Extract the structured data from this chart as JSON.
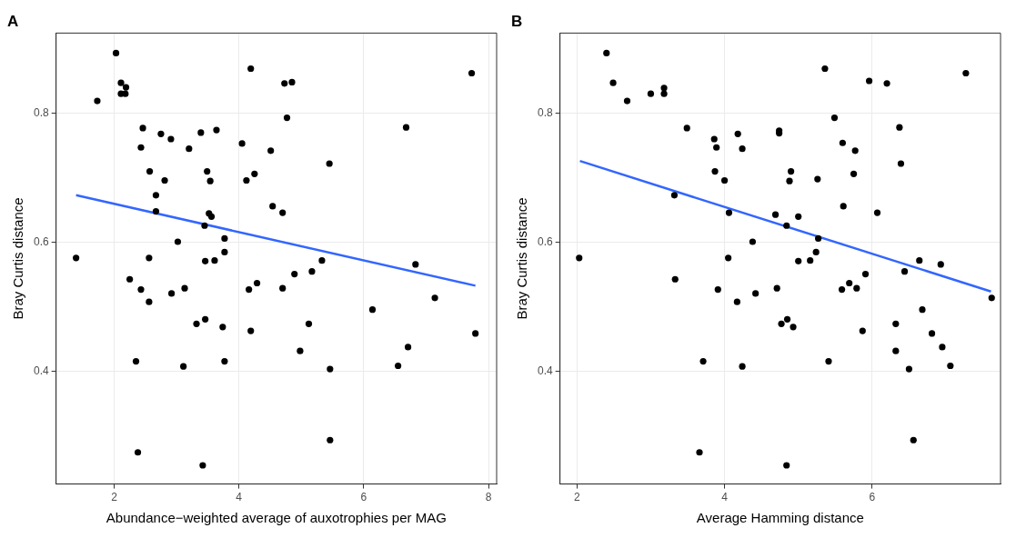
{
  "chart_data": [
    {
      "type": "scatter",
      "title": "A",
      "xlabel": "Abundance−weighted average of auxotrophies per MAG",
      "ylabel": "Bray Curtis distance",
      "xlim": [
        1.07,
        8.13
      ],
      "xticks": [
        2,
        4,
        6,
        8
      ],
      "ylim": [
        0.226,
        0.924
      ],
      "yticks": [
        0.4,
        0.6,
        0.8
      ],
      "grid": true,
      "legend": false,
      "marker": "circle",
      "series": [
        {
          "color": "#000000",
          "x": [
            2.03,
            1.73,
            2.11,
            2.19,
            2.11,
            2.18,
            4.19,
            2.46,
            2.75,
            2.91,
            2.43,
            3.2,
            3.39,
            3.64,
            4.05,
            4.51,
            2.57,
            2.81,
            3.49,
            3.54,
            4.12,
            4.25,
            2.67,
            4.54,
            2.67,
            3.52,
            3.56,
            3.45,
            3.02,
            3.77,
            3.77,
            1.39,
            2.56,
            3.46,
            3.61,
            2.25,
            4.29,
            4.73,
            4.85,
            4.77,
            5.45,
            7.73,
            6.68,
            4.7,
            5.33,
            4.89,
            5.17,
            6.83,
            2.43,
            2.56,
            2.92,
            3.13,
            4.16,
            4.7,
            6.14,
            7.14,
            7.79,
            3.32,
            3.46,
            3.74,
            4.19,
            5.12,
            4.98,
            2.35,
            3.11,
            3.77,
            5.46,
            6.55,
            6.71,
            2.38,
            3.42,
            5.46
          ],
          "values": [
            0.893,
            0.819,
            0.847,
            0.84,
            0.83,
            0.83,
            0.869,
            0.777,
            0.768,
            0.76,
            0.747,
            0.745,
            0.77,
            0.774,
            0.753,
            0.742,
            0.71,
            0.696,
            0.71,
            0.695,
            0.696,
            0.706,
            0.673,
            0.656,
            0.648,
            0.645,
            0.64,
            0.626,
            0.601,
            0.606,
            0.585,
            0.576,
            0.576,
            0.571,
            0.572,
            0.543,
            0.537,
            0.846,
            0.848,
            0.793,
            0.722,
            0.862,
            0.778,
            0.646,
            0.572,
            0.551,
            0.555,
            0.566,
            0.527,
            0.508,
            0.521,
            0.529,
            0.527,
            0.529,
            0.496,
            0.514,
            0.459,
            0.474,
            0.481,
            0.469,
            0.463,
            0.474,
            0.432,
            0.416,
            0.408,
            0.416,
            0.404,
            0.409,
            0.438,
            0.275,
            0.255,
            0.294
          ]
        },
        {
          "type": "line",
          "color": "#3366ff",
          "marker": "none",
          "x": [
            1.39,
            7.79
          ],
          "values": [
            0.673,
            0.533
          ]
        }
      ]
    },
    {
      "type": "scatter",
      "title": "B",
      "xlabel": "Average Hamming distance",
      "ylabel": "Bray Curtis distance",
      "xlim": [
        1.77,
        7.74
      ],
      "xticks": [
        2,
        4,
        6
      ],
      "ylim": [
        0.226,
        0.924
      ],
      "yticks": [
        0.4,
        0.6,
        0.8
      ],
      "grid": true,
      "legend": false,
      "marker": "circle",
      "series": [
        {
          "color": "#000000",
          "x": [
            2.4,
            2.49,
            2.68,
            3.0,
            3.18,
            3.18,
            3.49,
            3.86,
            3.89,
            4.18,
            4.24,
            4.74,
            4.74,
            3.87,
            4.0,
            3.32,
            4.06,
            4.69,
            4.38,
            2.03,
            4.05,
            3.33,
            5.36,
            5.96,
            6.2,
            7.27,
            5.49,
            6.37,
            5.6,
            5.77,
            6.39,
            4.9,
            4.88,
            5.26,
            5.75,
            5.61,
            6.07,
            4.84,
            5.0,
            5.27,
            5.24,
            5.0,
            5.16,
            6.64,
            6.93,
            5.91,
            6.44,
            5.69,
            3.91,
            4.17,
            4.42,
            4.71,
            5.59,
            5.79,
            7.62,
            6.68,
            6.32,
            6.81,
            6.95,
            6.32,
            4.77,
            4.85,
            4.93,
            5.87,
            3.71,
            4.24,
            5.41,
            6.5,
            7.06,
            3.66,
            4.84,
            6.56
          ],
          "values": [
            0.893,
            0.847,
            0.819,
            0.83,
            0.839,
            0.83,
            0.777,
            0.76,
            0.747,
            0.768,
            0.745,
            0.773,
            0.769,
            0.71,
            0.696,
            0.673,
            0.646,
            0.643,
            0.601,
            0.576,
            0.576,
            0.543,
            0.869,
            0.85,
            0.846,
            0.862,
            0.793,
            0.778,
            0.754,
            0.742,
            0.722,
            0.71,
            0.695,
            0.698,
            0.706,
            0.656,
            0.646,
            0.626,
            0.64,
            0.606,
            0.585,
            0.571,
            0.572,
            0.572,
            0.566,
            0.551,
            0.555,
            0.537,
            0.527,
            0.508,
            0.521,
            0.529,
            0.527,
            0.529,
            0.514,
            0.496,
            0.474,
            0.459,
            0.438,
            0.432,
            0.474,
            0.481,
            0.469,
            0.463,
            0.416,
            0.408,
            0.416,
            0.404,
            0.409,
            0.275,
            0.255,
            0.294
          ]
        },
        {
          "type": "line",
          "color": "#3366ff",
          "marker": "none",
          "x": [
            2.04,
            7.61
          ],
          "values": [
            0.726,
            0.524
          ]
        }
      ]
    }
  ]
}
